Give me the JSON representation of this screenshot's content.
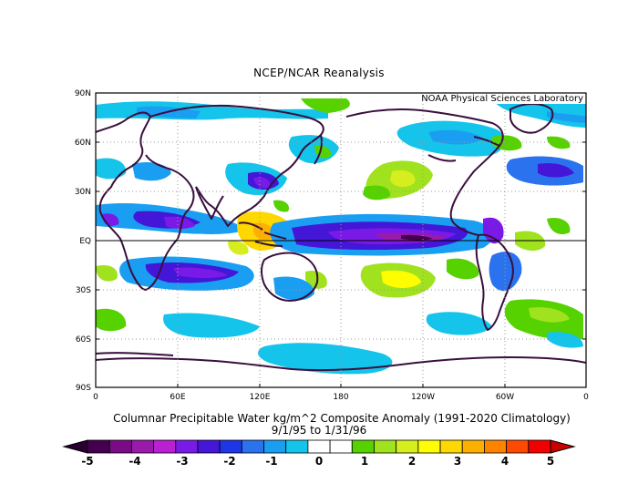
{
  "header": {
    "title": "NCEP/NCAR Reanalysis"
  },
  "map": {
    "credit": "NOAA Physical Sciences Laboratory",
    "lat_labels": [
      "90N",
      "60N",
      "30N",
      "EQ",
      "30S",
      "60S",
      "90S"
    ],
    "lon_labels": [
      "0",
      "60E",
      "120E",
      "180",
      "120W",
      "60W",
      "0"
    ],
    "gridlines": "dotted",
    "coastline_color": "#3a0f3d"
  },
  "caption": {
    "line1": "Columnar Precipitable Water kg/m^2 Composite Anomaly (1991-2020 Climatology)",
    "line2": "9/1/95  to 1/31/96"
  },
  "colorbar": {
    "tick_labels": [
      "-5",
      "-4",
      "-3",
      "-2",
      "-1",
      "0",
      "1",
      "2",
      "3",
      "4",
      "5"
    ],
    "colors": [
      "#44004f",
      "#7a0a86",
      "#9a1aac",
      "#b820d2",
      "#7a1ae6",
      "#4416d8",
      "#1f36e6",
      "#2a72ee",
      "#1a9ef2",
      "#14c4ea",
      "#ffffff",
      "#ffffff",
      "#55d200",
      "#a0e21e",
      "#d6ee1e",
      "#fefe00",
      "#fed800",
      "#feb000",
      "#fe8400",
      "#fe4a00",
      "#f00000"
    ]
  }
}
